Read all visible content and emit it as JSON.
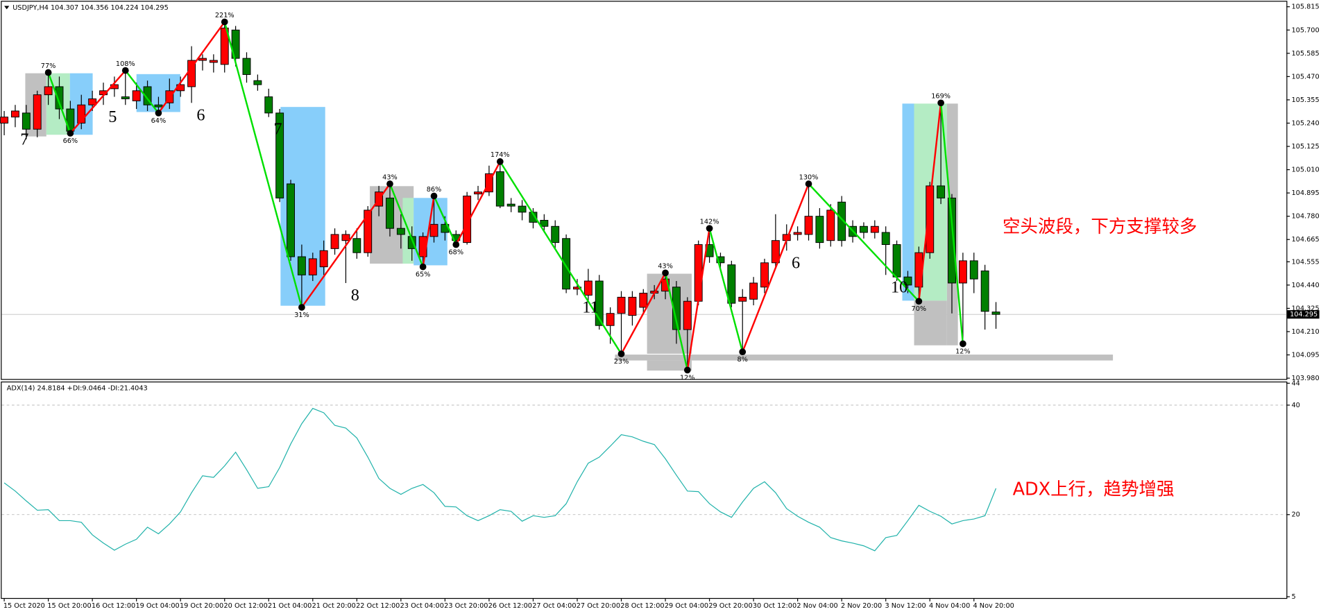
{
  "chart_data": [
    {
      "type": "candlestick",
      "header": "USDJPY,H4  104.307 104.356 104.224 104.295",
      "annotation": "空头波段，下方支撑较多",
      "categories": [
        "15 Oct 2020",
        null,
        null,
        null,
        "15 Oct 20:00",
        null,
        null,
        null,
        "16 Oct 12:00",
        null,
        null,
        null,
        "19 Oct 04:00",
        null,
        null,
        null,
        "19 Oct 20:00",
        null,
        null,
        null,
        "20 Oct 12:00",
        null,
        null,
        null,
        "21 Oct 04:00",
        null,
        null,
        null,
        "21 Oct 20:00",
        null,
        null,
        null,
        "22 Oct 12:00",
        null,
        null,
        null,
        "23 Oct 04:00",
        null,
        null,
        null,
        "23 Oct 20:00",
        null,
        null,
        null,
        "26 Oct 12:00",
        null,
        null,
        null,
        "27 Oct 04:00",
        null,
        null,
        null,
        "27 Oct 20:00",
        null,
        null,
        null,
        "28 Oct 12:00",
        null,
        null,
        null,
        "29 Oct 04:00",
        null,
        null,
        null,
        "29 Oct 20:00",
        null,
        null,
        null,
        "30 Oct 12:00",
        null,
        null,
        null,
        "2 Nov 04:00",
        null,
        null,
        null,
        "2 Nov 20:00",
        null,
        null,
        null,
        "3 Nov 12:00",
        null,
        null,
        null,
        "4 Nov 04:00",
        null,
        null,
        null,
        "4 Nov 20:00",
        null,
        null
      ],
      "open": [
        105.24,
        105.27,
        105.29,
        105.21,
        105.38,
        105.42,
        105.31,
        105.24,
        105.33,
        105.38,
        105.41,
        105.37,
        105.35,
        105.42,
        105.33,
        105.34,
        105.4,
        105.42,
        105.55,
        105.54,
        105.53,
        105.7,
        105.56,
        105.45,
        105.37,
        105.29,
        104.94,
        104.58,
        104.49,
        104.53,
        104.62,
        104.66,
        104.67,
        104.6,
        104.83,
        104.87,
        104.72,
        104.68,
        104.58,
        104.68,
        104.74,
        104.69,
        104.65,
        104.89,
        104.9,
        105.0,
        104.84,
        104.83,
        104.8,
        104.76,
        104.73,
        104.67,
        104.42,
        104.39,
        104.46,
        104.24,
        104.3,
        104.29,
        104.33,
        104.4,
        104.41,
        104.43,
        104.22,
        104.36,
        104.64,
        104.58,
        104.54,
        104.36,
        104.37,
        104.43,
        104.55,
        104.66,
        104.69,
        104.69,
        104.78,
        104.66,
        104.85,
        104.73,
        104.73,
        104.7,
        104.7,
        104.64,
        104.48,
        104.43,
        104.6,
        104.93,
        104.87,
        104.45,
        104.56,
        104.51,
        104.307
      ],
      "high": [
        105.3,
        105.33,
        105.33,
        105.4,
        105.49,
        105.47,
        105.35,
        105.38,
        105.4,
        105.44,
        105.47,
        105.5,
        105.44,
        105.45,
        105.37,
        105.46,
        105.47,
        105.62,
        105.58,
        105.58,
        105.74,
        105.72,
        105.59,
        105.48,
        105.41,
        105.31,
        104.96,
        104.64,
        104.6,
        104.66,
        104.72,
        104.71,
        104.72,
        104.83,
        104.93,
        104.94,
        104.79,
        104.73,
        104.7,
        104.88,
        104.78,
        104.71,
        104.9,
        104.93,
        105.03,
        105.05,
        104.87,
        104.86,
        104.82,
        104.79,
        104.76,
        104.69,
        104.47,
        104.52,
        104.49,
        104.33,
        104.41,
        104.41,
        104.42,
        104.44,
        104.5,
        104.46,
        104.38,
        104.66,
        104.72,
        104.6,
        104.56,
        104.42,
        104.48,
        104.57,
        104.79,
        104.74,
        104.73,
        104.94,
        104.82,
        104.84,
        104.88,
        104.76,
        104.75,
        104.76,
        104.73,
        104.66,
        104.51,
        104.63,
        104.95,
        105.34,
        104.89,
        104.6,
        104.6,
        104.54,
        104.356
      ],
      "low": [
        105.18,
        105.22,
        105.16,
        105.17,
        105.33,
        105.26,
        105.19,
        105.21,
        105.3,
        105.33,
        105.37,
        105.33,
        105.31,
        105.3,
        105.29,
        105.31,
        105.37,
        105.34,
        105.5,
        105.49,
        105.49,
        105.52,
        105.44,
        105.4,
        105.27,
        104.85,
        104.56,
        104.33,
        104.46,
        104.49,
        104.59,
        104.45,
        104.57,
        104.58,
        104.78,
        104.68,
        104.62,
        104.56,
        104.53,
        104.65,
        104.66,
        104.64,
        104.64,
        104.86,
        104.88,
        104.82,
        104.8,
        104.76,
        104.72,
        104.7,
        104.62,
        104.4,
        104.39,
        104.36,
        104.22,
        104.15,
        104.1,
        104.24,
        104.3,
        104.37,
        104.37,
        104.15,
        104.02,
        104.34,
        104.55,
        104.52,
        104.33,
        104.11,
        104.34,
        104.4,
        104.52,
        104.61,
        104.66,
        104.66,
        104.62,
        104.63,
        104.63,
        104.65,
        104.67,
        104.67,
        104.49,
        104.46,
        104.4,
        104.36,
        104.57,
        104.84,
        104.3,
        104.15,
        104.4,
        104.22,
        104.224
      ],
      "close": [
        105.27,
        105.3,
        105.21,
        105.38,
        105.42,
        105.31,
        105.2,
        105.33,
        105.36,
        105.4,
        105.43,
        105.36,
        105.4,
        105.33,
        105.32,
        105.4,
        105.43,
        105.55,
        105.56,
        105.55,
        105.71,
        105.56,
        105.48,
        105.43,
        105.29,
        104.87,
        104.58,
        104.49,
        104.57,
        104.61,
        104.69,
        104.69,
        104.6,
        104.81,
        104.9,
        104.72,
        104.69,
        104.62,
        104.68,
        104.74,
        104.7,
        104.66,
        104.88,
        104.9,
        104.99,
        104.83,
        104.83,
        104.8,
        104.75,
        104.73,
        104.65,
        104.42,
        104.43,
        104.46,
        104.24,
        104.3,
        104.38,
        104.38,
        104.4,
        104.41,
        104.47,
        104.22,
        104.36,
        104.64,
        104.58,
        104.55,
        104.35,
        104.38,
        104.45,
        104.55,
        104.66,
        104.69,
        104.7,
        104.78,
        104.65,
        104.81,
        104.66,
        104.68,
        104.7,
        104.73,
        104.64,
        104.48,
        104.44,
        104.6,
        104.93,
        104.87,
        104.45,
        104.56,
        104.47,
        104.31,
        104.295
      ],
      "up_color": "#ff0000",
      "down_color": "#008000",
      "ylim": [
        103.98,
        105.815
      ],
      "yticks": [
        {
          "value": 103.98,
          "label": "103.980"
        },
        104.095,
        {
          "value": 104.21,
          "label": "104.210"
        },
        104.325,
        {
          "value": 104.44,
          "label": "104.440"
        },
        104.555,
        104.665,
        {
          "value": 104.78,
          "label": "104.780"
        },
        104.895,
        {
          "value": 105.01,
          "label": "105.010"
        },
        105.125,
        {
          "value": 105.24,
          "label": "105.240"
        },
        105.355,
        {
          "value": 105.47,
          "label": "105.470"
        },
        105.585,
        {
          "value": 105.7,
          "label": "105.700"
        },
        105.815
      ],
      "current_price": 104.295,
      "zigzag": [
        null,
        null,
        null,
        null,
        105.49,
        null,
        105.19,
        null,
        null,
        null,
        null,
        105.5,
        null,
        null,
        105.29,
        null,
        null,
        null,
        null,
        null,
        105.74,
        null,
        null,
        null,
        null,
        null,
        null,
        104.33,
        null,
        null,
        null,
        null,
        null,
        null,
        null,
        104.94,
        null,
        null,
        104.53,
        104.88,
        null,
        104.64,
        null,
        null,
        null,
        105.05,
        null,
        null,
        null,
        null,
        null,
        null,
        null,
        null,
        null,
        null,
        104.1,
        null,
        null,
        null,
        104.5,
        null,
        104.02,
        null,
        104.72,
        null,
        null,
        104.11,
        null,
        null,
        null,
        null,
        null,
        104.94,
        null,
        null,
        null,
        null,
        null,
        null,
        null,
        null,
        null,
        104.36,
        null,
        105.34,
        null,
        104.15,
        null,
        null,
        null
      ],
      "pivot_labels": [
        null,
        null,
        null,
        null,
        "77%",
        null,
        "66%",
        null,
        null,
        null,
        null,
        "108%",
        null,
        null,
        "64%",
        null,
        null,
        null,
        null,
        null,
        "221%",
        null,
        null,
        null,
        null,
        null,
        null,
        "31%",
        null,
        null,
        null,
        null,
        null,
        null,
        null,
        "43%",
        null,
        null,
        "65%",
        "86%",
        null,
        "68%",
        null,
        null,
        null,
        "174%",
        null,
        null,
        null,
        null,
        null,
        null,
        null,
        null,
        null,
        null,
        "23%",
        null,
        null,
        null,
        "43%",
        null,
        "12%",
        null,
        "142%",
        null,
        null,
        "8%",
        null,
        null,
        null,
        null,
        null,
        "130%",
        null,
        null,
        null,
        null,
        null,
        null,
        null,
        null,
        null,
        "70%",
        null,
        "169%",
        null,
        "12%",
        null,
        null,
        null
      ],
      "wave_counts": [
        null,
        "7",
        null,
        null,
        null,
        null,
        null,
        null,
        null,
        "5",
        null,
        null,
        null,
        null,
        null,
        null,
        null,
        "6",
        null,
        null,
        null,
        null,
        null,
        null,
        "7",
        null,
        null,
        null,
        null,
        null,
        null,
        "8",
        null,
        null,
        null,
        null,
        null,
        null,
        null,
        null,
        null,
        null,
        null,
        null,
        null,
        null,
        null,
        null,
        null,
        null,
        null,
        null,
        "11",
        null,
        null,
        null,
        null,
        null,
        null,
        null,
        null,
        null,
        null,
        null,
        null,
        null,
        null,
        null,
        null,
        null,
        null,
        "6",
        null,
        null,
        null,
        null,
        null,
        null,
        null,
        null,
        "10",
        null,
        null,
        null,
        null,
        null,
        null,
        null,
        null,
        null,
        null
      ]
    },
    {
      "type": "line",
      "header": "ADX(14) 24.8184 +DI:9.0464 -DI:21.4043",
      "annotation": "ADX上行，趋势增强",
      "values": [
        25.8,
        24.3,
        22.5,
        20.8,
        20.9,
        18.9,
        18.9,
        18.6,
        16.3,
        14.8,
        13.5,
        14.6,
        15.5,
        17.7,
        16.5,
        18.3,
        20.5,
        24.0,
        27.1,
        26.8,
        28.9,
        31.4,
        28.2,
        24.8,
        25.1,
        28.6,
        32.9,
        36.6,
        39.4,
        38.6,
        36.3,
        35.8,
        34.0,
        30.5,
        26.6,
        24.8,
        23.7,
        24.8,
        25.5,
        24.0,
        21.5,
        21.4,
        19.8,
        18.9,
        19.8,
        20.9,
        20.6,
        18.8,
        19.8,
        19.5,
        19.8,
        22.0,
        26.0,
        29.4,
        30.5,
        32.5,
        34.6,
        34.2,
        33.4,
        32.8,
        30.2,
        27.2,
        24.3,
        24.2,
        22.0,
        20.5,
        19.5,
        22.3,
        24.8,
        26.0,
        24.0,
        21.1,
        19.7,
        18.6,
        17.7,
        15.8,
        15.2,
        14.8,
        14.3,
        13.4,
        15.8,
        16.2,
        18.9,
        21.7,
        20.6,
        19.7,
        18.3,
        18.9,
        19.2,
        19.8,
        24.8
      ],
      "color": "#20b2aa",
      "ylim": [
        5,
        44
      ],
      "yticks": [
        5,
        20,
        40,
        44
      ],
      "grid": true
    }
  ]
}
